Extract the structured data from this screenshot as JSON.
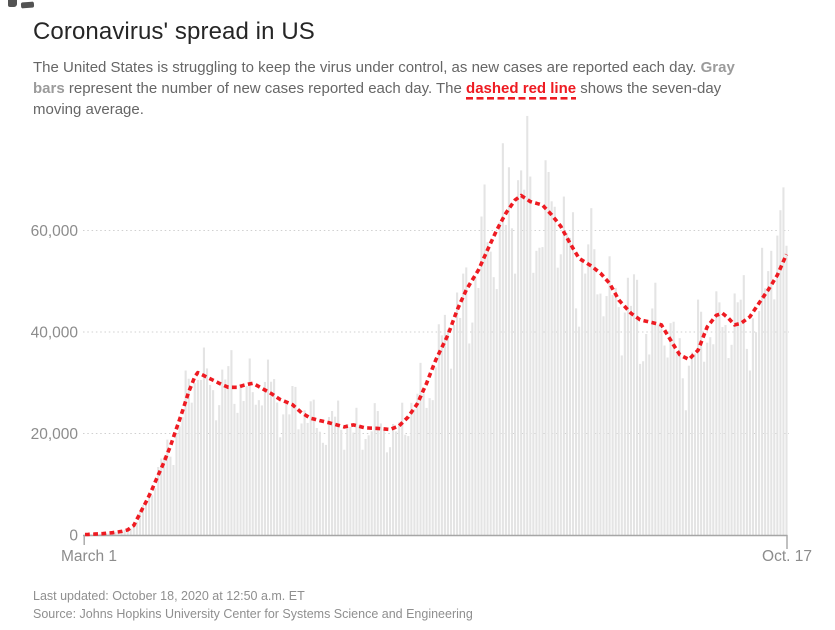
{
  "header": {
    "title": "Coronavirus' spread in US"
  },
  "description": {
    "runs": [
      {
        "text": "The United States is struggling to keep the virus under control, as new cases are reported each day. ",
        "style": "normal"
      },
      {
        "text": "Gray",
        "style": "grayBold",
        "br": true
      },
      {
        "text": "bars",
        "style": "grayBold"
      },
      {
        "text": " represent the number of new cases reported each day. The ",
        "style": "normal"
      },
      {
        "text": "dashed red line",
        "style": "redBold"
      },
      {
        "text": " shows the seven-day",
        "style": "normal",
        "br": true
      },
      {
        "text": "moving average.",
        "style": "normal"
      }
    ]
  },
  "footer": {
    "last_updated": "Last updated: October 18, 2020 at 12:50 a.m. ET",
    "source": "Source: Johns Hopkins University Center for Systems Science and Engineering"
  },
  "colors": {
    "background": "#ffffff",
    "title": "#262626",
    "body_text": "#666666",
    "muted_bold_gray": "#9b9b9b",
    "accent_red": "#ee1b22",
    "bar_gray": "#e4e4e4",
    "gridline": "#d0d0d0",
    "axis_line": "#a6a6a6",
    "axis_label": "#8c8c8c",
    "footer_text": "#8f8f8f"
  },
  "chart_data": {
    "type": "bar+line",
    "title": "Coronavirus' spread in US",
    "xlabel": "",
    "ylabel": "",
    "x_axis": {
      "n_points": 231,
      "first_tick_label": "March 1",
      "last_tick_label": "Oct. 17"
    },
    "y_axis": {
      "ticks": [
        0,
        20000,
        40000,
        60000
      ],
      "tick_labels": [
        "0",
        "20,000",
        "40,000",
        "60,000"
      ],
      "ylim": [
        0,
        78000
      ],
      "gridline_style": "dotted"
    },
    "bars": {
      "label": "New cases reported each day (gray bars)",
      "color": "#e4e4e4",
      "weekly_factors": [
        0.9,
        0.83,
        0.93,
        1.0,
        1.07,
        1.13,
        1.08
      ],
      "wiggle": [
        0.1,
        2.13,
        0.06,
        0.53,
        1.3
      ],
      "spikes": {
        "137": 77200,
        "166": 64400,
        "224": 52000,
        "225": 56000,
        "227": 59000,
        "228": 64000,
        "229": 68500,
        "230": 57000
      }
    },
    "line": {
      "label": "Seven-day moving average (dashed red line)",
      "color": "#ee1b22",
      "style": "dashed",
      "anchors_day_value": [
        [
          0,
          100
        ],
        [
          3,
          180
        ],
        [
          6,
          280
        ],
        [
          9,
          450
        ],
        [
          12,
          700
        ],
        [
          14,
          1000
        ],
        [
          16,
          1900
        ],
        [
          18,
          4200
        ],
        [
          20,
          6500
        ],
        [
          22,
          9000
        ],
        [
          24,
          11800
        ],
        [
          26,
          14500
        ],
        [
          28,
          17500
        ],
        [
          30,
          21000
        ],
        [
          32,
          24500
        ],
        [
          34,
          28200
        ],
        [
          36,
          31200
        ],
        [
          37,
          32000
        ],
        [
          39,
          31400
        ],
        [
          41,
          30800
        ],
        [
          43,
          30200
        ],
        [
          45,
          29600
        ],
        [
          47,
          29100
        ],
        [
          50,
          29100
        ],
        [
          52,
          29500
        ],
        [
          55,
          29900
        ],
        [
          58,
          28900
        ],
        [
          61,
          27900
        ],
        [
          64,
          26700
        ],
        [
          68,
          25700
        ],
        [
          71,
          24100
        ],
        [
          74,
          23000
        ],
        [
          78,
          22400
        ],
        [
          82,
          21800
        ],
        [
          85,
          21300
        ],
        [
          88,
          21700
        ],
        [
          92,
          21100
        ],
        [
          96,
          21000
        ],
        [
          100,
          20800
        ],
        [
          103,
          21500
        ],
        [
          106,
          23300
        ],
        [
          109,
          25900
        ],
        [
          112,
          29900
        ],
        [
          115,
          34500
        ],
        [
          119,
          39400
        ],
        [
          122,
          44300
        ],
        [
          125,
          48300
        ],
        [
          129,
          52200
        ],
        [
          132,
          56200
        ],
        [
          135,
          60100
        ],
        [
          138,
          63400
        ],
        [
          141,
          66000
        ],
        [
          143,
          66900
        ],
        [
          146,
          65700
        ],
        [
          150,
          65000
        ],
        [
          153,
          63100
        ],
        [
          156,
          60800
        ],
        [
          159,
          57500
        ],
        [
          162,
          54500
        ],
        [
          166,
          53000
        ],
        [
          169,
          51600
        ],
        [
          172,
          49600
        ],
        [
          175,
          46300
        ],
        [
          179,
          43700
        ],
        [
          182,
          42400
        ],
        [
          185,
          42000
        ],
        [
          189,
          41400
        ],
        [
          192,
          38400
        ],
        [
          195,
          35500
        ],
        [
          198,
          34600
        ],
        [
          201,
          36400
        ],
        [
          204,
          41000
        ],
        [
          207,
          43300
        ],
        [
          209,
          43700
        ],
        [
          211,
          42700
        ],
        [
          213,
          41400
        ],
        [
          215,
          41700
        ],
        [
          218,
          43000
        ],
        [
          221,
          45700
        ],
        [
          224,
          48300
        ],
        [
          227,
          51200
        ],
        [
          230,
          55300
        ]
      ]
    }
  }
}
